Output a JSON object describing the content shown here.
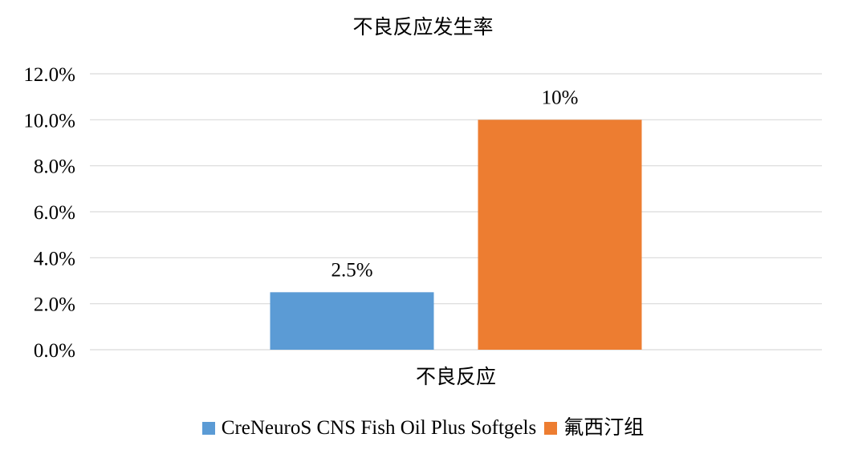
{
  "chart_data": {
    "type": "bar",
    "title": "不良反应发生率",
    "categories": [
      "不良反应"
    ],
    "series": [
      {
        "name": "CreNeuroS CNS Fish Oil Plus Softgels",
        "values": [
          2.5
        ],
        "labels": [
          "2.5%"
        ],
        "color": "#5B9BD5"
      },
      {
        "name": "氟西汀组",
        "values": [
          10
        ],
        "labels": [
          "10%"
        ],
        "color": "#ED7D31"
      }
    ],
    "ylim": [
      0,
      12
    ],
    "yticks": [
      0,
      2,
      4,
      6,
      8,
      10,
      12
    ],
    "ytick_labels": [
      "0.0%",
      "2.0%",
      "4.0%",
      "6.0%",
      "8.0%",
      "10.0%",
      "12.0%"
    ],
    "grid": true,
    "legend_position": "bottom",
    "xlabel": "",
    "ylabel": ""
  }
}
